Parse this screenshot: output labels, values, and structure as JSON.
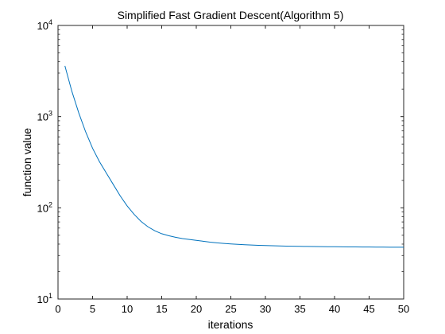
{
  "chart_data": {
    "type": "line",
    "title": "Simplified Fast Gradient Descent(Algorithm 5)",
    "xlabel": "iterations",
    "ylabel": "function value",
    "xlim": [
      0,
      50
    ],
    "ylim": [
      10,
      10000
    ],
    "y_scale": "log",
    "grid": false,
    "legend": "none",
    "x_ticks": [
      0,
      5,
      10,
      15,
      20,
      25,
      30,
      35,
      40,
      45,
      50
    ],
    "y_ticks": [
      {
        "value": 10,
        "base": "10",
        "exp": "1"
      },
      {
        "value": 100,
        "base": "10",
        "exp": "2"
      },
      {
        "value": 1000,
        "base": "10",
        "exp": "3"
      },
      {
        "value": 10000,
        "base": "10",
        "exp": "4"
      }
    ],
    "series": [
      {
        "color": "#0072bd",
        "x": [
          1,
          2,
          3,
          4,
          5,
          6,
          7,
          8,
          9,
          10,
          11,
          12,
          13,
          14,
          15,
          16,
          17,
          18,
          19,
          20,
          21,
          22,
          23,
          24,
          25,
          26,
          27,
          28,
          29,
          30,
          31,
          32,
          33,
          34,
          35,
          36,
          37,
          38,
          39,
          40,
          41,
          42,
          43,
          44,
          45,
          46,
          47,
          48,
          49,
          50
        ],
        "y": [
          3600,
          1900,
          1100,
          680,
          450,
          320,
          240,
          180,
          135,
          105,
          85,
          71,
          62,
          56,
          52,
          49.5,
          47.5,
          46,
          45,
          44,
          43,
          42,
          41.3,
          40.7,
          40.2,
          39.8,
          39.4,
          39.1,
          38.8,
          38.6,
          38.4,
          38.2,
          38.05,
          37.9,
          37.8,
          37.7,
          37.6,
          37.5,
          37.45,
          37.4,
          37.35,
          37.3,
          37.25,
          37.2,
          37.15,
          37.1,
          37.05,
          37.0,
          37.0,
          36.95
        ]
      }
    ]
  }
}
